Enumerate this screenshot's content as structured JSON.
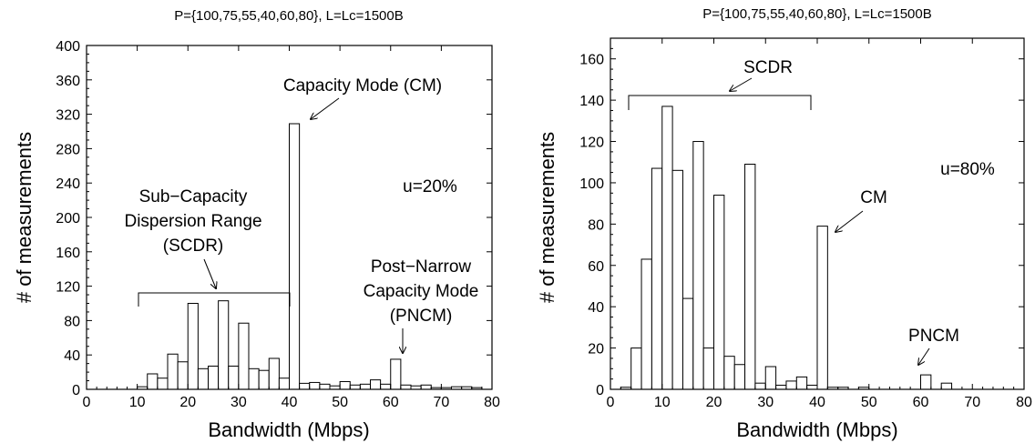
{
  "chart_data": [
    {
      "type": "bar",
      "title": "P={100,75,55,40,60,80}, L=Lc=1500B",
      "xlabel": "Bandwidth (Mbps)",
      "ylabel": "# of measurements",
      "xlim": [
        0,
        80
      ],
      "ylim": [
        0,
        400
      ],
      "xticks": [
        0,
        10,
        20,
        30,
        40,
        50,
        60,
        70,
        80
      ],
      "yticks": [
        0,
        40,
        80,
        120,
        160,
        200,
        240,
        280,
        320,
        360,
        400
      ],
      "bin_width": 2,
      "bins": [
        {
          "x": 10,
          "y": 3
        },
        {
          "x": 12,
          "y": 18
        },
        {
          "x": 14,
          "y": 13
        },
        {
          "x": 16,
          "y": 41
        },
        {
          "x": 18,
          "y": 32
        },
        {
          "x": 20,
          "y": 100
        },
        {
          "x": 22,
          "y": 24
        },
        {
          "x": 24,
          "y": 27
        },
        {
          "x": 26,
          "y": 103
        },
        {
          "x": 28,
          "y": 27
        },
        {
          "x": 30,
          "y": 77
        },
        {
          "x": 32,
          "y": 24
        },
        {
          "x": 34,
          "y": 22
        },
        {
          "x": 36,
          "y": 36
        },
        {
          "x": 38,
          "y": 13
        },
        {
          "x": 40,
          "y": 309
        },
        {
          "x": 42,
          "y": 7
        },
        {
          "x": 44,
          "y": 8
        },
        {
          "x": 46,
          "y": 6
        },
        {
          "x": 48,
          "y": 4
        },
        {
          "x": 50,
          "y": 9
        },
        {
          "x": 52,
          "y": 5
        },
        {
          "x": 54,
          "y": 6
        },
        {
          "x": 56,
          "y": 11
        },
        {
          "x": 58,
          "y": 6
        },
        {
          "x": 60,
          "y": 35
        },
        {
          "x": 62,
          "y": 5
        },
        {
          "x": 64,
          "y": 4
        },
        {
          "x": 66,
          "y": 5
        },
        {
          "x": 68,
          "y": 2
        },
        {
          "x": 70,
          "y": 2
        },
        {
          "x": 72,
          "y": 3
        },
        {
          "x": 74,
          "y": 3
        },
        {
          "x": 76,
          "y": 2
        }
      ],
      "annotations": {
        "u": "u=20%",
        "cm": "Capacity Mode (CM)",
        "scdr_lines": [
          "Sub−Capacity",
          "Dispersion Range",
          "(SCDR)"
        ],
        "pncm_lines": [
          "Post−Narrow",
          "Capacity Mode",
          "(PNCM)"
        ]
      },
      "grid": false
    },
    {
      "type": "bar",
      "title": "P={100,75,55,40,60,80}, L=Lc=1500B",
      "xlabel": "Bandwidth (Mbps)",
      "ylabel": "# of measurements",
      "xlim": [
        0,
        80
      ],
      "ylim": [
        0,
        170
      ],
      "xticks": [
        0,
        10,
        20,
        30,
        40,
        50,
        60,
        70,
        80
      ],
      "yticks": [
        0,
        20,
        40,
        60,
        80,
        100,
        120,
        140,
        160
      ],
      "bin_width": 2,
      "bins": [
        {
          "x": 2,
          "y": 1
        },
        {
          "x": 4,
          "y": 20
        },
        {
          "x": 6,
          "y": 63
        },
        {
          "x": 8,
          "y": 107
        },
        {
          "x": 10,
          "y": 137
        },
        {
          "x": 12,
          "y": 106
        },
        {
          "x": 14,
          "y": 44
        },
        {
          "x": 16,
          "y": 120
        },
        {
          "x": 18,
          "y": 20
        },
        {
          "x": 20,
          "y": 94
        },
        {
          "x": 22,
          "y": 16
        },
        {
          "x": 24,
          "y": 12
        },
        {
          "x": 26,
          "y": 109
        },
        {
          "x": 28,
          "y": 3
        },
        {
          "x": 30,
          "y": 11
        },
        {
          "x": 32,
          "y": 2
        },
        {
          "x": 34,
          "y": 4
        },
        {
          "x": 36,
          "y": 6
        },
        {
          "x": 38,
          "y": 2
        },
        {
          "x": 40,
          "y": 79
        },
        {
          "x": 42,
          "y": 1
        },
        {
          "x": 44,
          "y": 1
        },
        {
          "x": 48,
          "y": 1
        },
        {
          "x": 60,
          "y": 7
        },
        {
          "x": 64,
          "y": 3
        }
      ],
      "annotations": {
        "u": "u=80%",
        "cm": "CM",
        "scdr": "SCDR",
        "pncm": "PNCM"
      },
      "grid": false
    }
  ]
}
